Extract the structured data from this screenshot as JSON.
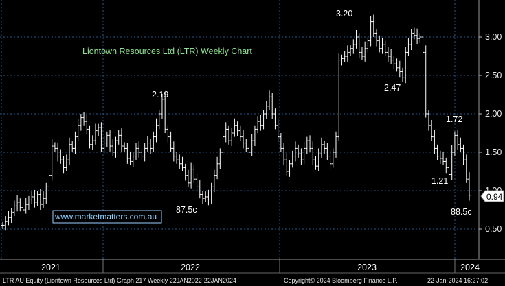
{
  "chart_data": {
    "type": "line",
    "title": "Liontown Resources Ltd (LTR) Weekly Chart",
    "xlabel": "",
    "ylabel": "",
    "x_ticks": [
      "2021",
      "2022",
      "2023",
      "2024"
    ],
    "y_ticks": [
      "0.50",
      "1.00",
      "1.50",
      "2.00",
      "2.50",
      "3.00"
    ],
    "ylim": [
      0.3,
      3.35
    ],
    "grid": true,
    "bar_style": "weekly price bars (white)",
    "series": [
      {
        "values": [
          0.55,
          0.6,
          0.65,
          0.72,
          0.8,
          0.85,
          0.78,
          0.75,
          0.82,
          0.88,
          0.92,
          0.85,
          0.95,
          0.82,
          0.9,
          1.05,
          1.2,
          1.58,
          1.55,
          1.45,
          1.4,
          1.3,
          1.4,
          1.6,
          1.55,
          1.7,
          1.85,
          1.95,
          1.9,
          1.8,
          1.6,
          1.65,
          1.78,
          1.82,
          1.55,
          1.62,
          1.72,
          1.58,
          1.5,
          1.65,
          1.72,
          1.58,
          1.55,
          1.42,
          1.38,
          1.45,
          1.55,
          1.5,
          1.45,
          1.55,
          1.62,
          1.55,
          1.7,
          1.85,
          2.0,
          2.19,
          1.8,
          1.7,
          1.55,
          1.45,
          1.4,
          1.35,
          1.3,
          1.2,
          1.1,
          1.28,
          1.15,
          1.05,
          0.95,
          0.9,
          0.92,
          0.88,
          1.05,
          1.2,
          1.35,
          1.5,
          1.7,
          1.8,
          1.65,
          1.75,
          1.85,
          1.78,
          1.7,
          1.62,
          1.55,
          1.5,
          1.65,
          1.8,
          1.9,
          1.85,
          2.0,
          2.1,
          2.22,
          2.0,
          1.85,
          1.7,
          1.55,
          1.4,
          1.25,
          1.35,
          1.45,
          1.55,
          1.48,
          1.4,
          1.55,
          1.65,
          1.55,
          1.4,
          1.32,
          1.48,
          1.6,
          1.55,
          1.45,
          1.35,
          1.5,
          1.7,
          2.7,
          2.72,
          2.75,
          2.8,
          2.85,
          2.9,
          3.0,
          2.8,
          2.75,
          2.85,
          2.95,
          3.2,
          3.05,
          2.95,
          2.85,
          2.9,
          2.8,
          2.75,
          2.7,
          2.65,
          2.6,
          2.55,
          2.47,
          2.8,
          2.9,
          3.05,
          3.02,
          2.98,
          3.0,
          2.8,
          2.0,
          1.85,
          1.7,
          1.55,
          1.45,
          1.42,
          1.38,
          1.3,
          1.21,
          1.5,
          1.72,
          1.6,
          1.55,
          1.4,
          1.15,
          0.94
        ]
      }
    ],
    "annotations": [
      {
        "text": "2.19"
      },
      {
        "text": "87.5c"
      },
      {
        "text": "3.20"
      },
      {
        "text": "2.47"
      },
      {
        "text": "1.72"
      },
      {
        "text": "1.21"
      },
      {
        "text": "88.5c"
      }
    ],
    "last_price": "0.94",
    "watermark": "www.marketmatters.com.au",
    "footer_left": "LTR AU Equity (Liontown Resources Ltd) Graph 217  Weekly 22JAN2022-22JAN2024",
    "footer_mid": "Copyright© 2024 Bloomberg Finance L.P.",
    "footer_right": "22-Jan-2024 16:27:02"
  },
  "colors": {
    "background": "#000000",
    "grid": "#1f5a91",
    "bars": "#ffffff",
    "title": "#8ee38e",
    "link": "#8fd3ff"
  }
}
